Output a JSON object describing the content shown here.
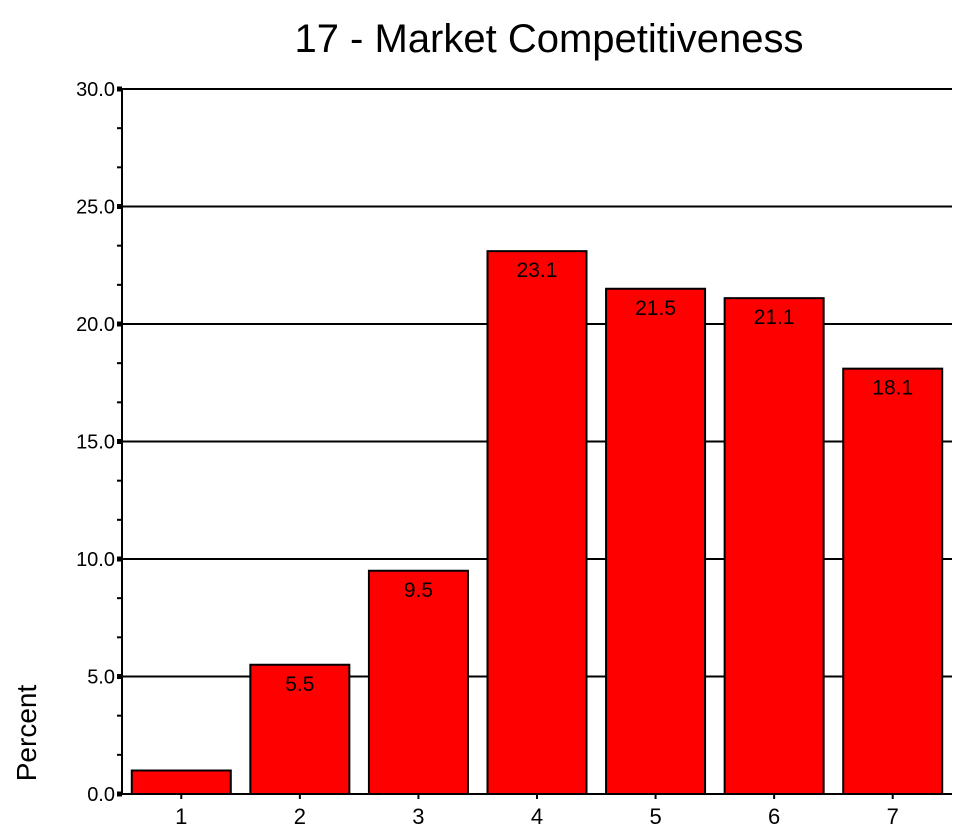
{
  "chart_data": {
    "type": "bar",
    "title": "17 - Market Competitiveness",
    "xlabel": "",
    "ylabel": "Percent",
    "categories": [
      "1",
      "2",
      "3",
      "4",
      "5",
      "6",
      "7"
    ],
    "values": [
      1.0,
      5.5,
      9.5,
      23.1,
      21.5,
      21.1,
      18.1
    ],
    "data_labels": [
      "",
      "5.5",
      "9.5",
      "23.1",
      "21.5",
      "21.1",
      "18.1"
    ],
    "ylim": [
      0,
      30
    ],
    "yticks": [
      "0.0",
      "5.0",
      "10.0",
      "15.0",
      "20.0",
      "25.0",
      "30.0"
    ],
    "grid": true,
    "legend": "none",
    "bar_color": "#ff0000",
    "edge_color": "#000000"
  }
}
